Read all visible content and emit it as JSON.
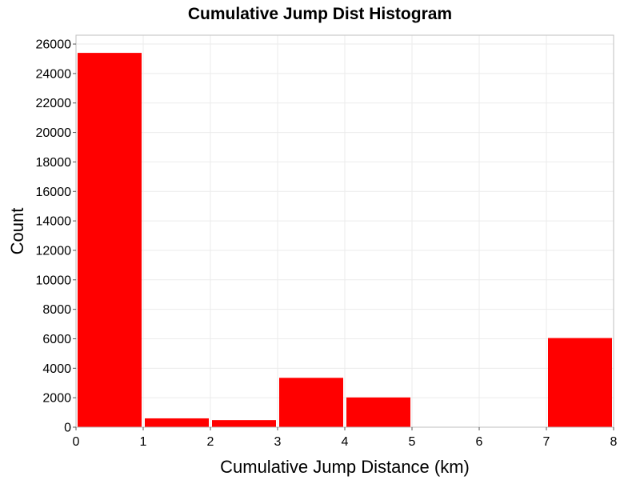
{
  "chart_data": {
    "type": "bar",
    "title": "Cumulative Jump Dist Histogram",
    "xlabel": "Cumulative Jump Distance (km)",
    "ylabel": "Count",
    "xlim": [
      0,
      8
    ],
    "ylim": [
      0,
      26600
    ],
    "x_ticks": [
      "0",
      "1",
      "2",
      "3",
      "4",
      "5",
      "6",
      "7",
      "8"
    ],
    "y_ticks": [
      "0",
      "2000",
      "4000",
      "6000",
      "8000",
      "10000",
      "12000",
      "14000",
      "16000",
      "18000",
      "20000",
      "22000",
      "24000",
      "26000"
    ],
    "bins": [
      {
        "start": 0,
        "end": 1,
        "value": 25400
      },
      {
        "start": 1,
        "end": 2,
        "value": 600
      },
      {
        "start": 2,
        "end": 3,
        "value": 480
      },
      {
        "start": 3,
        "end": 4,
        "value": 3350
      },
      {
        "start": 4,
        "end": 5,
        "value": 2020
      },
      {
        "start": 5,
        "end": 6,
        "value": 0
      },
      {
        "start": 6,
        "end": 7,
        "value": 0
      },
      {
        "start": 7,
        "end": 8,
        "value": 6050
      }
    ],
    "bar_color": "#ff0000",
    "grid": true,
    "legend": "none"
  }
}
